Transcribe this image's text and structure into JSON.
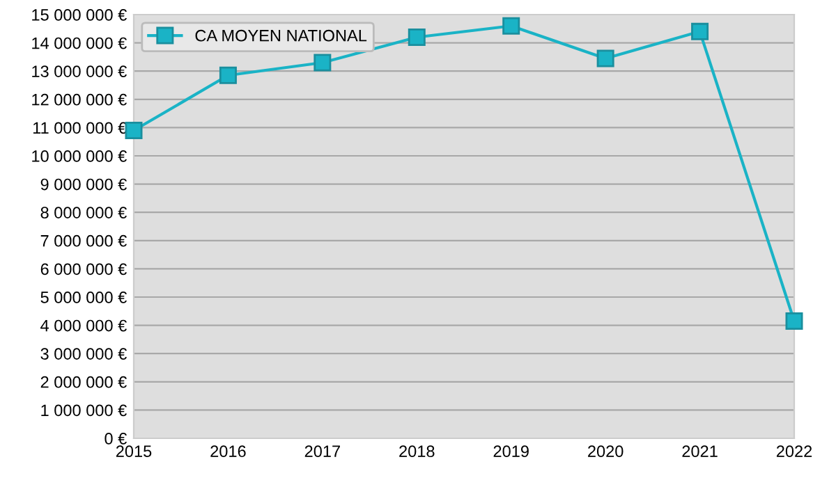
{
  "chart_data": {
    "type": "line",
    "x": [
      2015,
      2016,
      2017,
      2018,
      2019,
      2020,
      2021,
      2022
    ],
    "series": [
      {
        "name": "CA MOYEN NATIONAL",
        "color": "#1ab3c6",
        "values": [
          10900000,
          12850000,
          13300000,
          14200000,
          14600000,
          13450000,
          14400000,
          4150000
        ]
      }
    ],
    "xlim": [
      2015,
      2022
    ],
    "xticks": [
      2015,
      2016,
      2017,
      2018,
      2019,
      2020,
      2021,
      2022
    ],
    "ylim": [
      0,
      15000000
    ],
    "yticks": [
      {
        "value": 0,
        "label": "0 €"
      },
      {
        "value": 1000000,
        "label": "1 000 000 €"
      },
      {
        "value": 2000000,
        "label": "2 000 000 €"
      },
      {
        "value": 3000000,
        "label": "3 000 000 €"
      },
      {
        "value": 4000000,
        "label": "4 000 000 €"
      },
      {
        "value": 5000000,
        "label": "5 000 000 €"
      },
      {
        "value": 6000000,
        "label": "6 000 000 €"
      },
      {
        "value": 7000000,
        "label": "7 000 000 €"
      },
      {
        "value": 8000000,
        "label": "8 000 000 €"
      },
      {
        "value": 9000000,
        "label": "9 000 000 €"
      },
      {
        "value": 10000000,
        "label": "10 000 000 €"
      },
      {
        "value": 11000000,
        "label": "11 000 000 €"
      },
      {
        "value": 12000000,
        "label": "12 000 000 €"
      },
      {
        "value": 13000000,
        "label": "13 000 000 €"
      },
      {
        "value": 14000000,
        "label": "14 000 000 €"
      },
      {
        "value": 15000000,
        "label": "15 000 000 €"
      }
    ],
    "grid": "y",
    "legend": "top left",
    "marker": "square",
    "line_style": "solid"
  }
}
